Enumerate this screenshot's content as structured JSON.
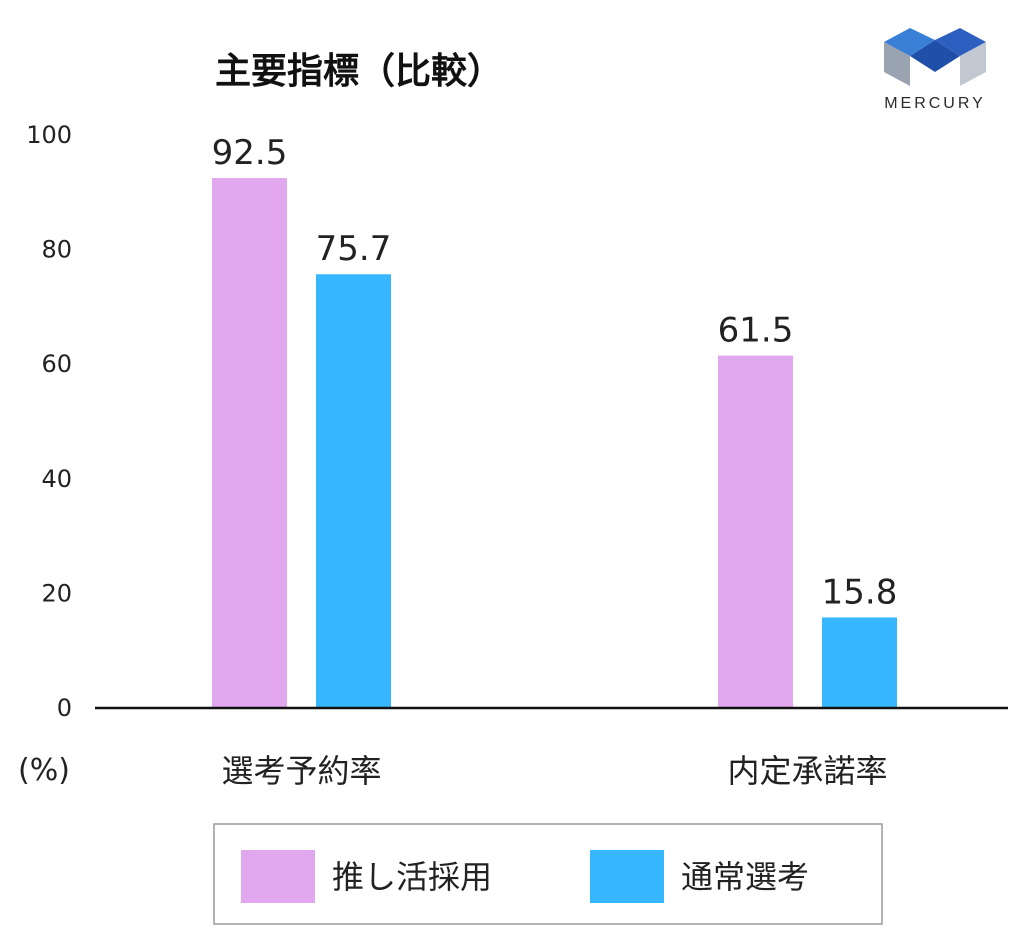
{
  "chart_data": {
    "type": "bar",
    "title": "主要指標（比較）",
    "unit_label": "(%)",
    "categories": [
      "選考予約率",
      "内定承諾率"
    ],
    "series": [
      {
        "name": "推し活採用",
        "values": [
          92.5,
          61.5
        ],
        "color": "#e1a8ef"
      },
      {
        "name": "通常選考",
        "values": [
          75.7,
          15.8
        ],
        "color": "#36b7ff"
      }
    ],
    "ylim": [
      0,
      100
    ],
    "yticks": [
      "0",
      "20",
      "40",
      "60",
      "80",
      "100"
    ],
    "grid": false,
    "legend_position": "bottom"
  },
  "logo": {
    "text": "MERCURY",
    "icon": "mercury-m-logo-icon"
  }
}
